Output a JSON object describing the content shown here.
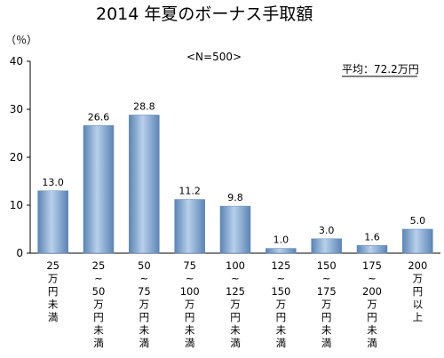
{
  "chart_data": {
    "type": "bar",
    "title": "2014 年夏のボーナス手取額",
    "unit_label": "（％）",
    "annotation_n": "<N=500>",
    "annotation_avg": "平均：72.2万円",
    "categories": [
      [
        "25",
        "万",
        "円",
        "未",
        "満"
      ],
      [
        "25",
        "~",
        "50",
        "万",
        "円",
        "未",
        "満"
      ],
      [
        "50",
        "~",
        "75",
        "万",
        "円",
        "未",
        "満"
      ],
      [
        "75",
        "~",
        "100",
        "万",
        "円",
        "未",
        "満"
      ],
      [
        "100",
        "~",
        "125",
        "万",
        "円",
        "未",
        "満"
      ],
      [
        "125",
        "~",
        "150",
        "万",
        "円",
        "未",
        "満"
      ],
      [
        "150",
        "~",
        "175",
        "万",
        "円",
        "未",
        "満"
      ],
      [
        "175",
        "~",
        "200",
        "万",
        "円",
        "未",
        "満"
      ],
      [
        "200",
        "万",
        "円",
        "以",
        "上"
      ]
    ],
    "values": [
      13.0,
      26.6,
      28.8,
      11.2,
      9.8,
      1.0,
      3.0,
      1.6,
      5.0
    ],
    "data_labels": [
      "13.0",
      "26.6",
      "28.8",
      "11.2",
      "9.8",
      "1.0",
      "3.0",
      "1.6",
      "5.0"
    ],
    "yticks": [
      "0",
      "10",
      "20",
      "30",
      "40"
    ],
    "ylim": [
      0,
      40
    ],
    "bar_color_light": "#b8d0ea",
    "bar_color_dark": "#5b84b6",
    "grid": false
  }
}
